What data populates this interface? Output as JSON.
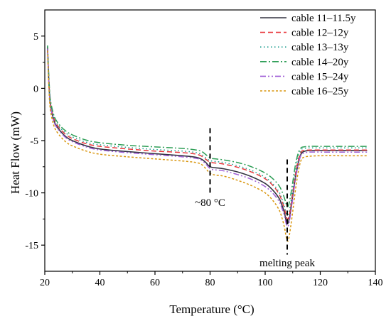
{
  "chart_data": {
    "type": "line",
    "xlabel": "Temperature (°C)",
    "ylabel": "Heat Flow (mW)",
    "xlim": [
      20,
      140
    ],
    "ylim": [
      -17.5,
      7.5
    ],
    "xticks": [
      20,
      40,
      60,
      80,
      100,
      120,
      140
    ],
    "yticks": [
      5,
      0,
      -5,
      -10,
      -15
    ],
    "grid": false,
    "legend_position": "top-right",
    "series": [
      {
        "name": "cable 11–11.5y",
        "color": "#333340",
        "dash": "solid",
        "x": [
          21,
          21.5,
          22,
          23,
          24,
          26,
          28,
          30,
          35,
          40,
          50,
          60,
          70,
          75,
          77,
          78.5,
          79.5,
          80.5,
          82,
          85,
          90,
          95,
          100,
          103,
          105,
          106,
          107,
          107.7,
          108.3,
          109,
          110,
          111,
          112,
          113,
          114,
          116,
          120,
          130,
          137
        ],
        "y": [
          3.9,
          0.5,
          -1.5,
          -2.8,
          -3.5,
          -4.2,
          -4.7,
          -5.0,
          -5.5,
          -5.8,
          -6.05,
          -6.25,
          -6.45,
          -6.6,
          -6.8,
          -7.1,
          -7.4,
          -7.55,
          -7.6,
          -7.7,
          -8.0,
          -8.45,
          -9.1,
          -9.8,
          -10.5,
          -11.1,
          -11.9,
          -12.8,
          -12.9,
          -12.1,
          -10.3,
          -8.5,
          -7.2,
          -6.3,
          -6.05,
          -5.95,
          -5.95,
          -5.95,
          -5.95
        ]
      },
      {
        "name": "cable 12–12y",
        "color": "#e8363a",
        "dash": "dashed",
        "x": [
          21,
          21.5,
          22,
          23,
          24,
          26,
          28,
          30,
          35,
          40,
          50,
          60,
          70,
          75,
          77,
          78.5,
          79.5,
          80.5,
          82,
          85,
          90,
          95,
          100,
          103,
          105,
          106,
          107,
          107.7,
          108.3,
          109,
          110,
          111,
          112,
          113,
          114,
          116,
          120,
          130,
          137
        ],
        "y": [
          3.9,
          0.7,
          -1.3,
          -2.6,
          -3.3,
          -4.0,
          -4.5,
          -4.8,
          -5.3,
          -5.55,
          -5.8,
          -6.0,
          -6.15,
          -6.3,
          -6.5,
          -6.8,
          -7.0,
          -7.1,
          -7.15,
          -7.25,
          -7.55,
          -8.0,
          -8.65,
          -9.35,
          -10.1,
          -10.7,
          -11.5,
          -12.3,
          -12.5,
          -11.8,
          -10.0,
          -8.2,
          -6.9,
          -6.1,
          -5.95,
          -5.9,
          -5.9,
          -5.9,
          -5.9
        ]
      },
      {
        "name": "cable 13–13y",
        "color": "#1f9e8f",
        "dash": "dotted",
        "x": [
          21,
          21.5,
          22,
          23,
          24,
          26,
          28,
          30,
          35,
          40,
          50,
          60,
          70,
          75,
          77,
          78.5,
          79.5,
          80.5,
          82,
          85,
          90,
          95,
          100,
          103,
          105,
          106,
          107,
          107.7,
          108.3,
          109,
          110,
          111,
          112,
          113,
          114,
          116,
          120,
          130,
          137
        ],
        "y": [
          4.0,
          0.8,
          -1.2,
          -2.5,
          -3.2,
          -3.9,
          -4.35,
          -4.65,
          -5.15,
          -5.4,
          -5.65,
          -5.85,
          -6.0,
          -6.15,
          -6.35,
          -6.65,
          -6.85,
          -6.95,
          -7.0,
          -7.1,
          -7.4,
          -7.85,
          -8.5,
          -9.2,
          -9.9,
          -10.5,
          -11.3,
          -12.0,
          -12.1,
          -11.4,
          -9.7,
          -7.9,
          -6.6,
          -5.9,
          -5.75,
          -5.7,
          -5.7,
          -5.7,
          -5.7
        ]
      },
      {
        "name": "cable 14–20y",
        "color": "#2e9e56",
        "dash": "dashdot",
        "x": [
          21,
          21.5,
          22,
          23,
          24,
          26,
          28,
          30,
          35,
          40,
          50,
          60,
          70,
          75,
          77,
          78.5,
          79.5,
          80.5,
          82,
          85,
          90,
          95,
          100,
          103,
          105,
          106,
          107,
          107.7,
          108.3,
          109,
          110,
          111,
          112,
          113,
          114,
          116,
          120,
          130,
          137
        ],
        "y": [
          4.1,
          1.0,
          -1.0,
          -2.3,
          -3.0,
          -3.7,
          -4.15,
          -4.45,
          -4.95,
          -5.2,
          -5.45,
          -5.6,
          -5.75,
          -5.9,
          -6.05,
          -6.35,
          -6.55,
          -6.7,
          -6.75,
          -6.85,
          -7.1,
          -7.5,
          -8.1,
          -8.7,
          -9.3,
          -9.8,
          -10.5,
          -11.1,
          -11.3,
          -10.6,
          -9.0,
          -7.3,
          -6.2,
          -5.7,
          -5.6,
          -5.55,
          -5.55,
          -5.55,
          -5.55
        ]
      },
      {
        "name": "cable 15–24y",
        "color": "#a05fd6",
        "dash": "dashdotdot",
        "x": [
          21,
          21.5,
          22,
          23,
          24,
          26,
          28,
          30,
          35,
          40,
          50,
          60,
          70,
          75,
          77,
          78.5,
          79.5,
          80.5,
          82,
          85,
          90,
          95,
          100,
          103,
          105,
          106,
          107,
          107.7,
          108.3,
          109,
          110,
          111,
          112,
          113,
          114,
          116,
          120,
          130,
          137
        ],
        "y": [
          3.8,
          0.4,
          -1.6,
          -2.9,
          -3.6,
          -4.3,
          -4.8,
          -5.1,
          -5.6,
          -5.9,
          -6.15,
          -6.35,
          -6.55,
          -6.7,
          -6.9,
          -7.25,
          -7.55,
          -7.75,
          -7.8,
          -7.9,
          -8.25,
          -8.7,
          -9.4,
          -10.1,
          -10.8,
          -11.4,
          -12.2,
          -13.0,
          -13.2,
          -12.4,
          -10.6,
          -8.7,
          -7.3,
          -6.4,
          -6.2,
          -6.1,
          -6.1,
          -6.1,
          -6.1
        ]
      },
      {
        "name": "cable 16–25y",
        "color": "#d9960f",
        "dash": "shortdot",
        "x": [
          21,
          21.5,
          22,
          23,
          24,
          26,
          28,
          30,
          35,
          40,
          50,
          60,
          70,
          75,
          77,
          78.5,
          79.5,
          80.5,
          82,
          85,
          90,
          95,
          100,
          103,
          105,
          106,
          107,
          107.7,
          108.3,
          109,
          110,
          111,
          112,
          113,
          114,
          116,
          120,
          130,
          137
        ],
        "y": [
          3.6,
          0.0,
          -2.0,
          -3.3,
          -4.0,
          -4.7,
          -5.2,
          -5.5,
          -6.0,
          -6.3,
          -6.55,
          -6.75,
          -6.95,
          -7.1,
          -7.3,
          -7.7,
          -8.0,
          -8.2,
          -8.3,
          -8.4,
          -8.8,
          -9.3,
          -10.0,
          -10.8,
          -11.6,
          -12.3,
          -13.3,
          -14.3,
          -14.6,
          -13.7,
          -11.8,
          -9.7,
          -8.0,
          -6.9,
          -6.6,
          -6.5,
          -6.45,
          -6.45,
          -6.45
        ]
      }
    ],
    "annotations": [
      {
        "text": "~80 °C",
        "x": 80,
        "y": -10.9,
        "marker_x": 80,
        "marker_ymin": -10.2,
        "marker_ymax": -3.8
      },
      {
        "text": "melting peak",
        "x": 108,
        "y": -16.7,
        "marker_x": 108,
        "marker_ymin": -15.9,
        "marker_ymax": -6.8
      }
    ]
  }
}
